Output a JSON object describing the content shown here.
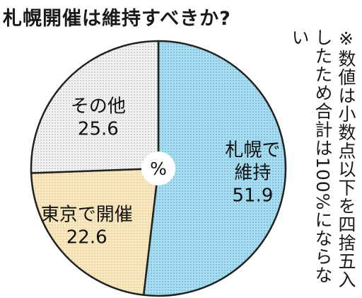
{
  "chart_data": {
    "type": "pie",
    "title": "札幌開催は維持すべきか?",
    "unit": "%",
    "start_angle_deg": 0,
    "direction": "clockwise",
    "slices": [
      {
        "name_lines": [
          "札幌で",
          "維持"
        ],
        "value": 51.9,
        "value_label": "51.9",
        "color": "#a9dcef",
        "pattern": "dots-blue"
      },
      {
        "name_lines": [
          "東京で開催"
        ],
        "value": 22.6,
        "value_label": "22.6",
        "color": "#f7e8c2",
        "pattern": "dots-beige"
      },
      {
        "name_lines": [
          "その他"
        ],
        "value": 25.6,
        "value_label": "25.6",
        "color": "#eeeeee",
        "pattern": "dots-gray"
      }
    ]
  },
  "note": "※数値は小数点以下を四捨五入したため合計は100%にならない"
}
